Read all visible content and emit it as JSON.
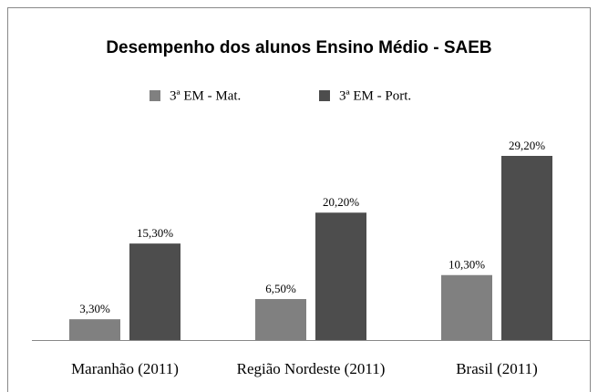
{
  "chart_data": {
    "type": "bar",
    "title": "Desempenho dos alunos Ensino Médio - SAEB",
    "categories": [
      "Maranhão (2011)",
      "Região Nordeste (2011)",
      "Brasil (2011)"
    ],
    "series": [
      {
        "name": "3ª EM - Mat.",
        "color": "#808080",
        "values": [
          3.3,
          6.5,
          10.3
        ],
        "value_labels": [
          "3,30%",
          "6,50%",
          "10,30%"
        ]
      },
      {
        "name": "3ª EM - Port.",
        "color": "#4d4d4d",
        "values": [
          15.3,
          20.2,
          29.2
        ],
        "value_labels": [
          "15,30%",
          "20,20%",
          "29,20%"
        ]
      }
    ],
    "legend": "top"
  }
}
